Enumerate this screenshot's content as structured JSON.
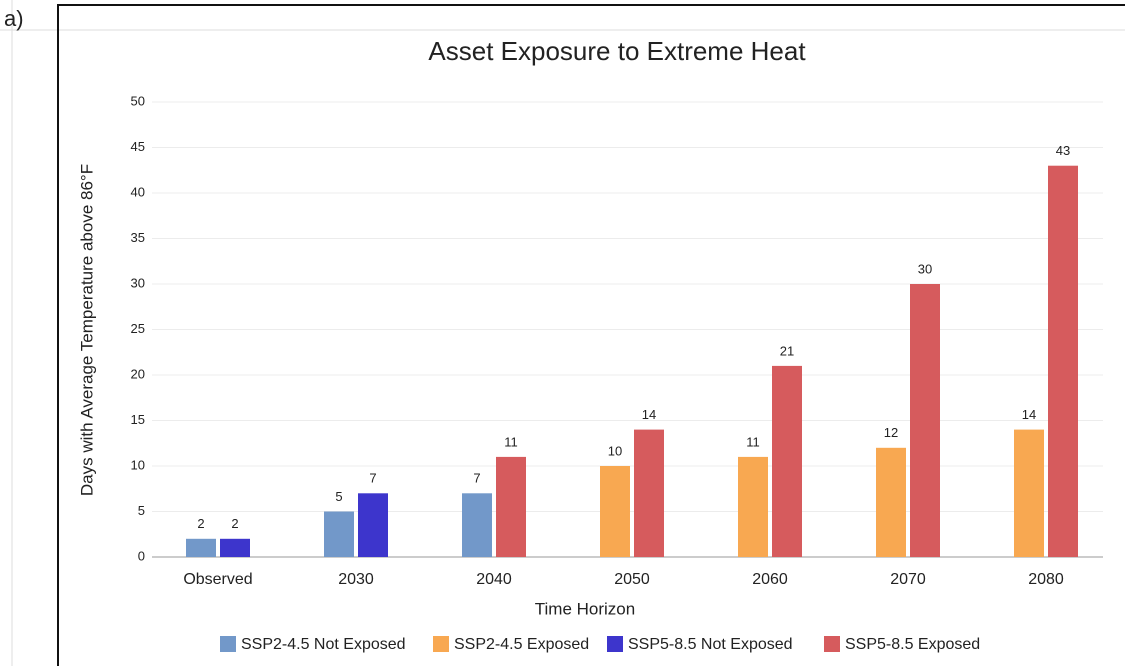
{
  "panel_label": "a)",
  "chart_data": {
    "type": "bar",
    "title": "Asset Exposure to Extreme Heat",
    "x_label": "Time Horizon",
    "y_label": "Days with Average Temperature above 86°F",
    "categories": [
      "Observed",
      "2030",
      "2040",
      "2050",
      "2060",
      "2070",
      "2080"
    ],
    "series": [
      {
        "name": "SSP2-4.5 Not Exposed",
        "color": "#7298c9",
        "values": [
          2,
          5,
          7,
          null,
          null,
          null,
          null
        ]
      },
      {
        "name": "SSP2-4.5 Exposed",
        "color": "#f8a851",
        "values": [
          null,
          null,
          null,
          10,
          11,
          12,
          14
        ]
      },
      {
        "name": "SSP5-8.5 Not Exposed",
        "color": "#3d35cc",
        "values": [
          2,
          7,
          null,
          null,
          null,
          null,
          null
        ]
      },
      {
        "name": "SSP5-8.5 Exposed",
        "color": "#d65b5d",
        "values": [
          null,
          null,
          11,
          14,
          21,
          30,
          43
        ]
      }
    ],
    "ylim": [
      0,
      50
    ],
    "yticks": [
      0,
      5,
      10,
      15,
      20,
      25,
      30,
      35,
      40,
      45,
      50
    ],
    "grid": true,
    "legend": "bottom"
  }
}
